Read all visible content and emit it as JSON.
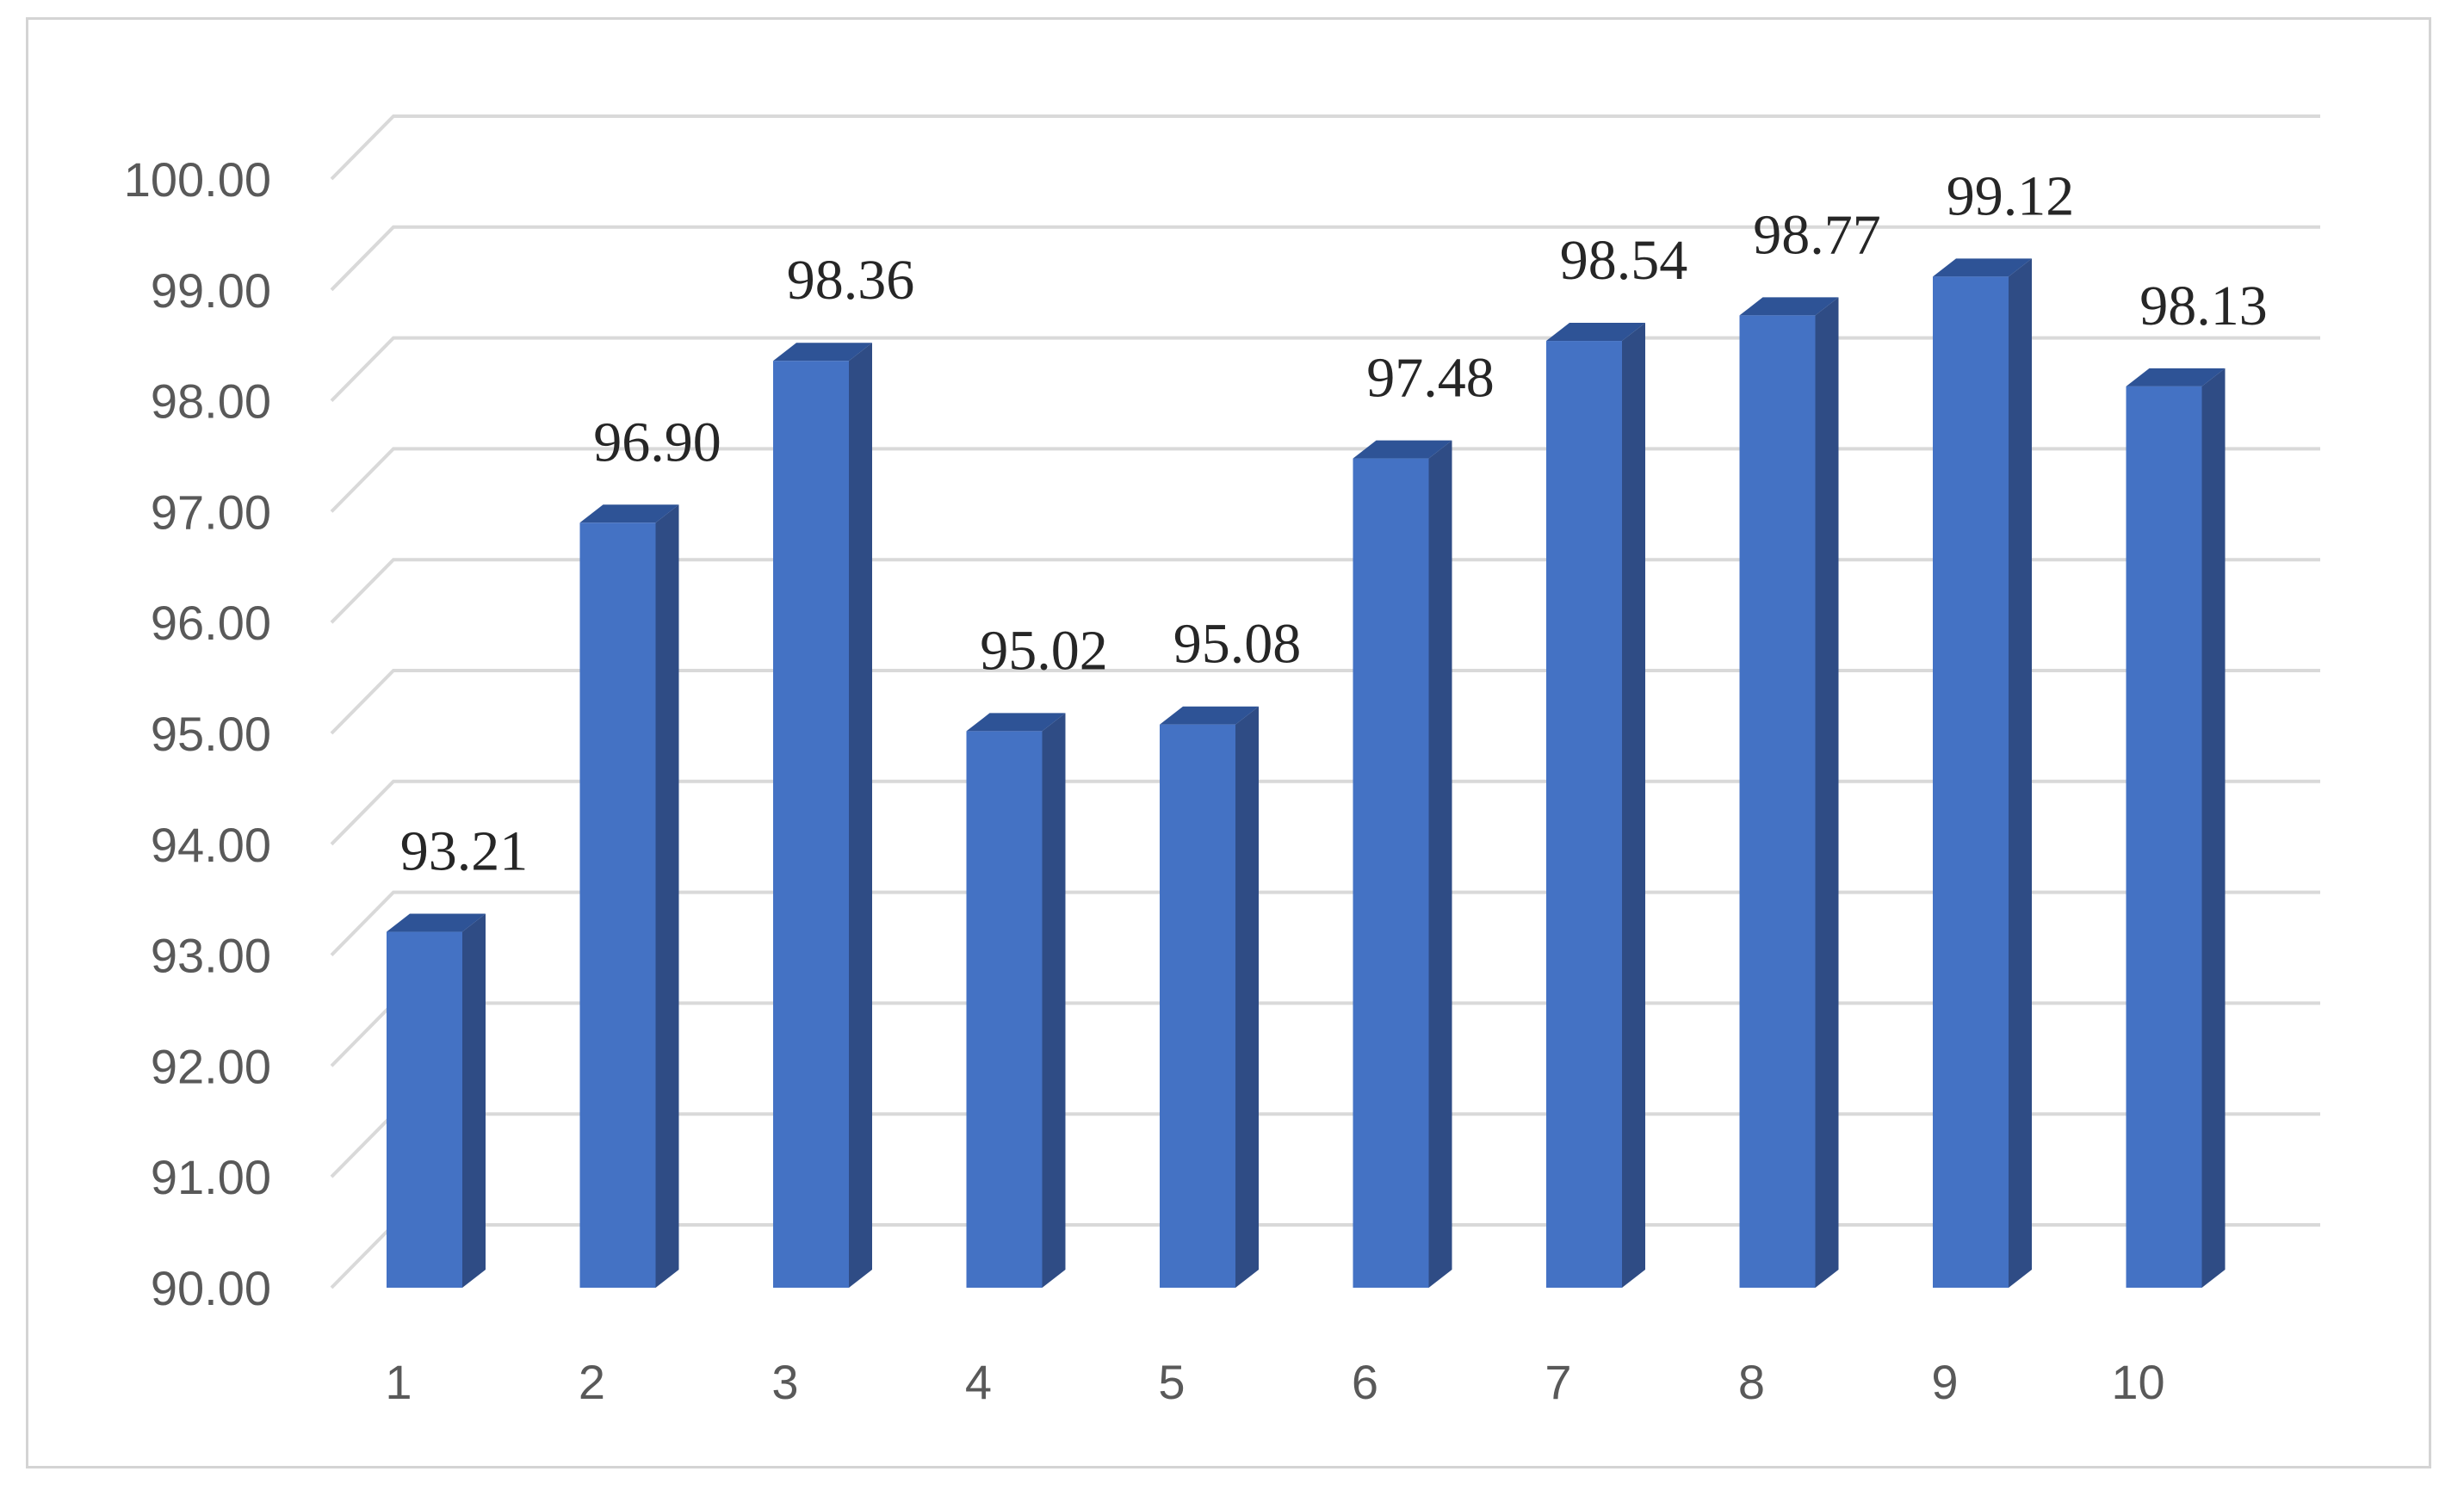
{
  "chart_data": {
    "type": "bar",
    "style": "3d-column",
    "categories": [
      "1",
      "2",
      "3",
      "4",
      "5",
      "6",
      "7",
      "8",
      "9",
      "10"
    ],
    "values": [
      93.21,
      96.9,
      98.36,
      95.02,
      95.08,
      97.48,
      98.54,
      98.77,
      99.12,
      98.13
    ],
    "data_labels": [
      "93.21",
      "96.90",
      "98.36",
      "95.02",
      "95.08",
      "97.48",
      "98.54",
      "98.77",
      "99.12",
      "98.13"
    ],
    "y_ticks": [
      "90.00",
      "91.00",
      "92.00",
      "93.00",
      "94.00",
      "95.00",
      "96.00",
      "97.00",
      "98.00",
      "99.00",
      "100.00"
    ],
    "ylim": [
      90,
      100
    ],
    "grid": true,
    "legend": "none",
    "title": "",
    "xlabel": "",
    "ylabel": ""
  },
  "colors": {
    "bar_front": "#4472C4",
    "bar_side": "#2F4C85",
    "bar_top": "#2E5396",
    "grid": "#D9D9D9",
    "tick_text": "#595959",
    "label_text": "#262626"
  }
}
